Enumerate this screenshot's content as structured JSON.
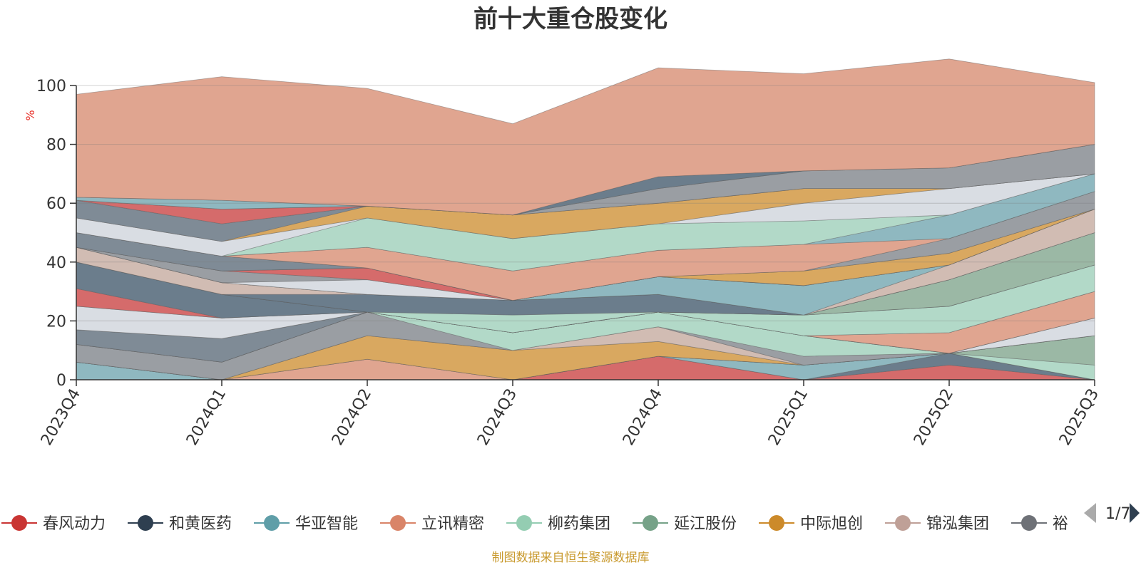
{
  "chart_data": {
    "type": "area",
    "title": "前十大重仓股变化",
    "ylabel": "%",
    "ylim": [
      0,
      100
    ],
    "yticks": [
      0,
      20,
      40,
      60,
      80,
      100
    ],
    "grid": true,
    "legend_position": "bottom",
    "categories": [
      "2023Q4",
      "2024Q1",
      "2024Q2",
      "2024Q3",
      "2024Q4",
      "2025Q1",
      "2025Q2",
      "2025Q3"
    ],
    "series": [
      {
        "name": "春风动力",
        "color": "#d56b6b",
        "values": [
          0,
          0,
          0,
          0,
          8,
          0,
          5,
          0
        ]
      },
      {
        "name": "和黄医药",
        "color": "#6b7d8c",
        "values": [
          0,
          0,
          0,
          0,
          0,
          0,
          4,
          0
        ]
      },
      {
        "name": "华亚智能",
        "color": "#8fb8c0",
        "values": [
          6,
          0,
          0,
          0,
          0,
          5,
          0,
          0
        ]
      },
      {
        "name": "立讯精密",
        "color": "#e0a590",
        "values": [
          0,
          0,
          7,
          0,
          0,
          0,
          0,
          0
        ]
      },
      {
        "name": "柳药集团",
        "color": "#b2d9c8",
        "values": [
          0,
          0,
          0,
          0,
          0,
          0,
          0,
          5
        ]
      },
      {
        "name": "延江股份",
        "color": "#9bb8a5",
        "values": [
          0,
          0,
          0,
          0,
          0,
          0,
          0,
          10
        ]
      },
      {
        "name": "中际旭创",
        "color": "#d9a860",
        "values": [
          0,
          0,
          8,
          10,
          5,
          0,
          0,
          0
        ]
      },
      {
        "name": "锦泓集团",
        "color": "#d1bcb3",
        "values": [
          0,
          0,
          0,
          0,
          5,
          0,
          0,
          0
        ]
      },
      {
        "name": "",
        "color": "#9a9ea3",
        "values": [
          6,
          6,
          8,
          0,
          0,
          3,
          0,
          0
        ]
      },
      {
        "name": "",
        "color": "#b2d9c8",
        "values": [
          0,
          0,
          0,
          6,
          5,
          7,
          0,
          0
        ]
      },
      {
        "name": "",
        "color": "#d9dde3",
        "values": [
          0,
          0,
          0,
          0,
          0,
          0,
          0,
          6
        ]
      },
      {
        "name": "",
        "color": "#6b7d8c",
        "values": [
          0,
          0,
          0,
          0,
          0,
          0,
          0,
          0
        ]
      },
      {
        "name": "",
        "color": "#7f8b96",
        "values": [
          5,
          8,
          0,
          0,
          0,
          0,
          0,
          0
        ]
      },
      {
        "name": "",
        "color": "#e0a590",
        "values": [
          0,
          0,
          0,
          0,
          0,
          0,
          7,
          9
        ]
      },
      {
        "name": "",
        "color": "#d9dde3",
        "values": [
          8,
          7,
          0,
          0,
          0,
          0,
          0,
          0
        ]
      },
      {
        "name": "",
        "color": "#b2d9c8",
        "values": [
          0,
          0,
          0,
          0,
          0,
          7,
          9,
          9
        ]
      },
      {
        "name": "",
        "color": "#d56b6b",
        "values": [
          6,
          0,
          0,
          0,
          0,
          0,
          0,
          0
        ]
      },
      {
        "name": "",
        "color": "#6b7d8c",
        "values": [
          9,
          8,
          0,
          0,
          0,
          0,
          0,
          0
        ]
      },
      {
        "name": "",
        "color": "#9bb8a5",
        "values": [
          0,
          0,
          0,
          0,
          0,
          0,
          9,
          11
        ]
      },
      {
        "name": "",
        "color": "#b2d9c8",
        "values": [
          0,
          0,
          0,
          6,
          0,
          0,
          0,
          0
        ]
      },
      {
        "name": "",
        "color": "#6b7d8c",
        "values": [
          0,
          0,
          6,
          5,
          6,
          0,
          0,
          0
        ]
      },
      {
        "name": "",
        "color": "#d1bcb3",
        "values": [
          5,
          4,
          0,
          0,
          0,
          0,
          0,
          0
        ]
      },
      {
        "name": "",
        "color": "#d1bcb3",
        "values": [
          0,
          0,
          0,
          0,
          0,
          0,
          5,
          8
        ]
      },
      {
        "name": "",
        "color": "#8fb8c0",
        "values": [
          0,
          0,
          0,
          0,
          6,
          10,
          0,
          0
        ]
      },
      {
        "name": "",
        "color": "#d9dde3",
        "values": [
          0,
          0,
          5,
          0,
          0,
          0,
          0,
          0
        ]
      },
      {
        "name": "",
        "color": "#9a9ea3",
        "values": [
          0,
          4,
          0,
          0,
          0,
          0,
          0,
          0
        ]
      },
      {
        "name": "",
        "color": "#d56b6b",
        "values": [
          0,
          0,
          4,
          0,
          0,
          0,
          0,
          0
        ]
      },
      {
        "name": "",
        "color": "#d9a860",
        "values": [
          0,
          0,
          0,
          0,
          0,
          5,
          4,
          0
        ]
      },
      {
        "name": "",
        "color": "#7f8b96",
        "values": [
          5,
          5,
          0,
          0,
          0,
          0,
          0,
          0
        ]
      },
      {
        "name": "",
        "color": "#9a9ea3",
        "values": [
          0,
          0,
          0,
          0,
          0,
          0,
          5,
          6
        ]
      },
      {
        "name": "",
        "color": "#e0a590",
        "values": [
          0,
          0,
          7,
          10,
          9,
          9,
          0,
          0
        ]
      },
      {
        "name": "",
        "color": "#8fb8c0",
        "values": [
          0,
          0,
          0,
          0,
          0,
          0,
          8,
          6
        ]
      },
      {
        "name": "",
        "color": "#b2d9c8",
        "values": [
          0,
          0,
          10,
          11,
          9,
          8,
          0,
          0
        ]
      },
      {
        "name": "",
        "color": "#d9dde3",
        "values": [
          5,
          5,
          0,
          0,
          0,
          6,
          9,
          0
        ]
      },
      {
        "name": "",
        "color": "#d9a860",
        "values": [
          0,
          0,
          4,
          8,
          7,
          5,
          0,
          0
        ]
      },
      {
        "name": "",
        "color": "#7f8b96",
        "values": [
          6,
          6,
          0,
          0,
          0,
          0,
          0,
          0
        ]
      },
      {
        "name": "",
        "color": "#d56b6b",
        "values": [
          0,
          5,
          0,
          0,
          0,
          0,
          0,
          0
        ]
      },
      {
        "name": "",
        "color": "#9a9ea3",
        "values": [
          0,
          0,
          0,
          0,
          5,
          6,
          7,
          10
        ]
      },
      {
        "name": "",
        "color": "#8fb8c0",
        "values": [
          1,
          3,
          0,
          0,
          0,
          0,
          0,
          0
        ]
      },
      {
        "name": "",
        "color": "#6b7d8c",
        "values": [
          0,
          0,
          0,
          0,
          4,
          0,
          0,
          0
        ]
      },
      {
        "name": "",
        "color": "#e0a590",
        "values": [
          35,
          42,
          40,
          31,
          37,
          33,
          37,
          21
        ]
      }
    ]
  },
  "legend": {
    "items": [
      {
        "label": "春风动力",
        "color": "#c93533"
      },
      {
        "label": "和黄医药",
        "color": "#2e3f50"
      },
      {
        "label": "华亚智能",
        "color": "#5f9ea8"
      },
      {
        "label": "立讯精密",
        "color": "#d98468"
      },
      {
        "label": "柳药集团",
        "color": "#94cdb2"
      },
      {
        "label": "延江股份",
        "color": "#76a288"
      },
      {
        "label": "中际旭创",
        "color": "#cc8a2a"
      },
      {
        "label": "锦泓集团",
        "color": "#bfa097"
      },
      {
        "label": "裕",
        "color": "#6e7177"
      }
    ],
    "page": "1/7"
  },
  "footer": "制图数据来自恒生聚源数据库"
}
